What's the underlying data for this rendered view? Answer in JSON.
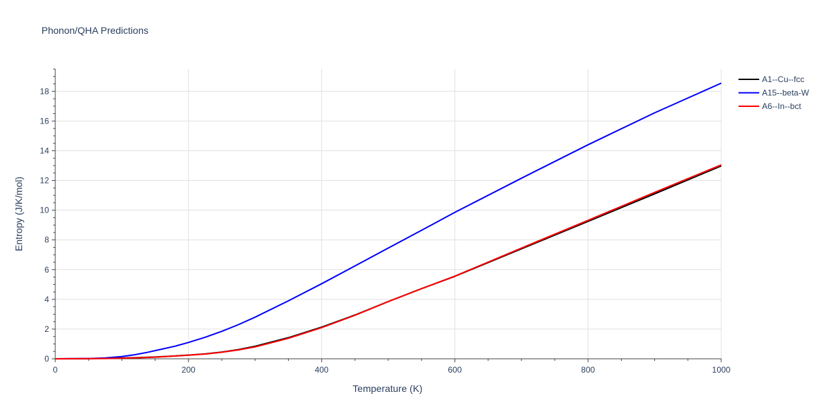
{
  "chart_data": {
    "type": "line",
    "title": "Phonon/QHA Predictions",
    "xlabel": "Temperature (K)",
    "ylabel": "Entropy (J/K/mol)",
    "xlim": [
      0,
      1000
    ],
    "ylim": [
      0,
      19.5
    ],
    "xticks": [
      0,
      200,
      400,
      600,
      800,
      1000
    ],
    "yticks": [
      0,
      2,
      4,
      6,
      8,
      10,
      12,
      14,
      16,
      18
    ],
    "grid": true,
    "legend_position": "top-right",
    "series": [
      {
        "name": "A1--Cu--fcc",
        "color": "#000000",
        "x": [
          0,
          50,
          75,
          100,
          125,
          150,
          175,
          200,
          225,
          250,
          275,
          300,
          350,
          400,
          450,
          500,
          550,
          600,
          700,
          800,
          900,
          1000
        ],
        "y": [
          0,
          0.01,
          0.03,
          0.05,
          0.08,
          0.12,
          0.18,
          0.25,
          0.33,
          0.45,
          0.62,
          0.84,
          1.42,
          2.13,
          2.95,
          3.85,
          4.72,
          5.55,
          7.4,
          9.25,
          11.1,
          12.98
        ]
      },
      {
        "name": "A15--beta-W",
        "color": "#0000ff",
        "x": [
          0,
          50,
          75,
          100,
          120,
          140,
          160,
          180,
          200,
          225,
          250,
          275,
          300,
          350,
          400,
          450,
          500,
          550,
          600,
          700,
          800,
          900,
          1000
        ],
        "y": [
          0,
          0.02,
          0.06,
          0.15,
          0.28,
          0.45,
          0.65,
          0.85,
          1.1,
          1.45,
          1.85,
          2.3,
          2.8,
          3.9,
          5.05,
          6.25,
          7.45,
          8.65,
          9.85,
          12.15,
          14.4,
          16.55,
          18.55
        ]
      },
      {
        "name": "A6--In--bct",
        "color": "#ff0000",
        "x": [
          0,
          50,
          75,
          100,
          125,
          150,
          175,
          200,
          225,
          250,
          275,
          300,
          350,
          400,
          450,
          500,
          550,
          600,
          700,
          800,
          900,
          1000
        ],
        "y": [
          0,
          0.01,
          0.02,
          0.04,
          0.07,
          0.11,
          0.17,
          0.24,
          0.32,
          0.44,
          0.6,
          0.8,
          1.38,
          2.1,
          2.93,
          3.85,
          4.72,
          5.56,
          7.45,
          9.32,
          11.2,
          13.05
        ]
      }
    ]
  }
}
